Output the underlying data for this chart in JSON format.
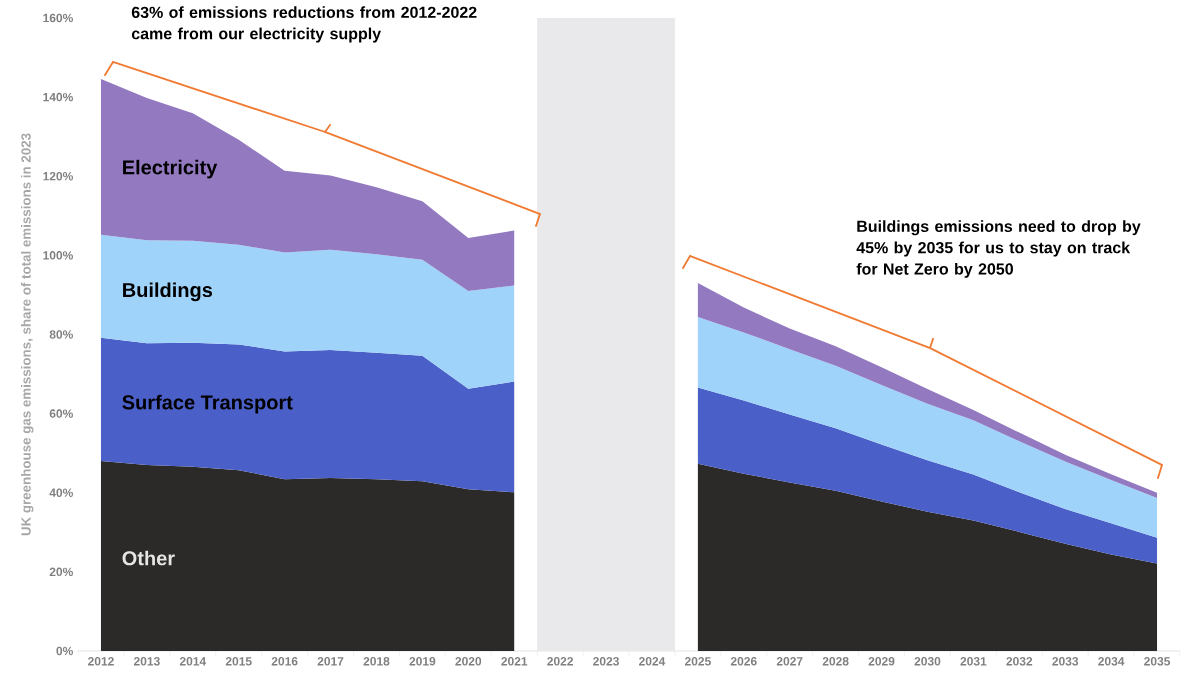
{
  "chart_data": {
    "type": "area",
    "stacked": true,
    "ylabel": "UK greenhouse gas emissions, share of total emissions in 2023",
    "x": [
      2012,
      2013,
      2014,
      2015,
      2016,
      2017,
      2018,
      2019,
      2020,
      2021,
      2022,
      2023,
      2024,
      2025,
      2026,
      2027,
      2028,
      2029,
      2030,
      2031,
      2032,
      2033,
      2034,
      2035
    ],
    "series": [
      {
        "name": "Other",
        "color": "#2b2a29",
        "values": [
          48.0,
          47.0,
          46.6,
          45.7,
          43.4,
          43.7,
          43.4,
          42.9,
          40.9,
          40.1,
          null,
          null,
          null,
          47.3,
          44.8,
          42.6,
          40.5,
          37.8,
          35.2,
          33.0,
          30.1,
          27.1,
          24.4,
          22.1
        ]
      },
      {
        "name": "Surface Transport",
        "color": "#4b5fc8",
        "values": [
          31.2,
          30.8,
          31.3,
          31.8,
          32.3,
          32.4,
          32.0,
          31.7,
          25.4,
          28.0,
          null,
          null,
          null,
          19.3,
          18.5,
          17.2,
          15.8,
          14.4,
          13.0,
          11.6,
          10.0,
          8.8,
          7.9,
          6.5
        ]
      },
      {
        "name": "Buildings",
        "color": "#9fd3fa",
        "values": [
          26.0,
          26.0,
          25.8,
          25.2,
          25.0,
          25.3,
          24.9,
          24.3,
          24.7,
          24.3,
          null,
          null,
          null,
          17.8,
          17.2,
          16.5,
          15.8,
          15.0,
          14.3,
          13.7,
          12.9,
          12.0,
          10.9,
          10.1
        ]
      },
      {
        "name": "Electricity",
        "color": "#9379c0",
        "values": [
          39.4,
          36.0,
          32.2,
          26.5,
          20.7,
          18.8,
          16.9,
          14.8,
          13.4,
          13.9,
          null,
          null,
          null,
          8.6,
          6.3,
          5.2,
          4.9,
          4.5,
          3.7,
          2.6,
          2.2,
          1.7,
          1.5,
          1.3
        ]
      }
    ],
    "xlim": [
      2011.5,
      2035.5
    ],
    "xticks": [
      2012,
      2013,
      2014,
      2015,
      2016,
      2017,
      2018,
      2019,
      2020,
      2021,
      2022,
      2023,
      2024,
      2025,
      2026,
      2027,
      2028,
      2029,
      2030,
      2031,
      2032,
      2033,
      2034,
      2035
    ],
    "ylim": [
      0,
      160
    ],
    "yticks": [
      {
        "value": 0,
        "label": "0%"
      },
      {
        "value": 20,
        "label": "20%"
      },
      {
        "value": 40,
        "label": "40%"
      },
      {
        "value": 60,
        "label": "60%"
      },
      {
        "value": 80,
        "label": "80%"
      },
      {
        "value": 100,
        "label": "100%"
      },
      {
        "value": 120,
        "label": "120%"
      },
      {
        "value": 140,
        "label": "140%"
      },
      {
        "value": 160,
        "label": "160%"
      }
    ],
    "bands": [
      {
        "axis": "x",
        "from": 2021.5,
        "to": 2024.5,
        "color": "#e9e9ec"
      }
    ],
    "annotations": [
      "63% of emissions reductions from 2012-2022 came from our electricity supply",
      "Buildings emissions need to drop by 45% by 2035 for us to stay on track for Net Zero by 2050"
    ]
  }
}
